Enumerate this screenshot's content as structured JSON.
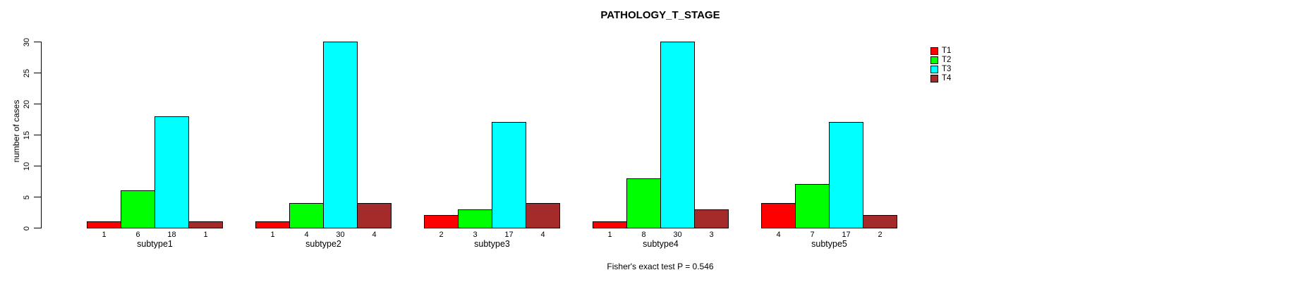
{
  "chart_data": {
    "type": "bar",
    "title": "PATHOLOGY_T_STAGE",
    "xlabel": "",
    "ylabel": "number of cases",
    "ylim": [
      0,
      30
    ],
    "yticks": [
      0,
      5,
      10,
      15,
      20,
      25,
      30
    ],
    "grid": false,
    "legend_position": "right-inside",
    "categories": [
      "subtype1",
      "subtype2",
      "subtype3",
      "subtype4",
      "subtype5"
    ],
    "series": [
      {
        "name": "T1",
        "color": "#ff0000",
        "values": [
          1,
          1,
          2,
          1,
          4
        ]
      },
      {
        "name": "T2",
        "color": "#00ff00",
        "values": [
          6,
          4,
          3,
          8,
          7
        ]
      },
      {
        "name": "T3",
        "color": "#00ffff",
        "values": [
          18,
          30,
          17,
          30,
          17
        ]
      },
      {
        "name": "T4",
        "color": "#a52a2a",
        "values": [
          1,
          4,
          4,
          3,
          2
        ]
      }
    ],
    "bar_value_labels_shown": true,
    "annotation": "Fisher's exact test P = 0.546"
  },
  "colors": {
    "background": "#ffffff",
    "axis": "#000000",
    "text": "#000000"
  }
}
